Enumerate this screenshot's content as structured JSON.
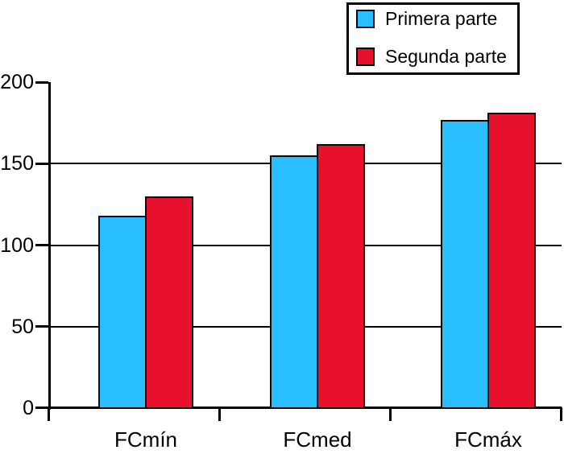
{
  "chart_data": {
    "type": "bar",
    "title": "",
    "xlabel": "",
    "ylabel": "",
    "categories": [
      "FCmín",
      "FCmed",
      "FCmáx"
    ],
    "series": [
      {
        "name": "Primera parte",
        "color": "#29BEFF",
        "values": [
          118,
          155,
          177
        ]
      },
      {
        "name": "Segunda parte",
        "color": "#E8112D",
        "values": [
          130,
          162,
          181
        ]
      }
    ],
    "ylim": [
      0,
      200
    ],
    "yticks": [
      0,
      50,
      100,
      150,
      200
    ],
    "grid": "horizontal lines at 50, 100, 150",
    "legend_position": "top-right",
    "axis_color": "#000000",
    "background_color": "#ffffff"
  }
}
